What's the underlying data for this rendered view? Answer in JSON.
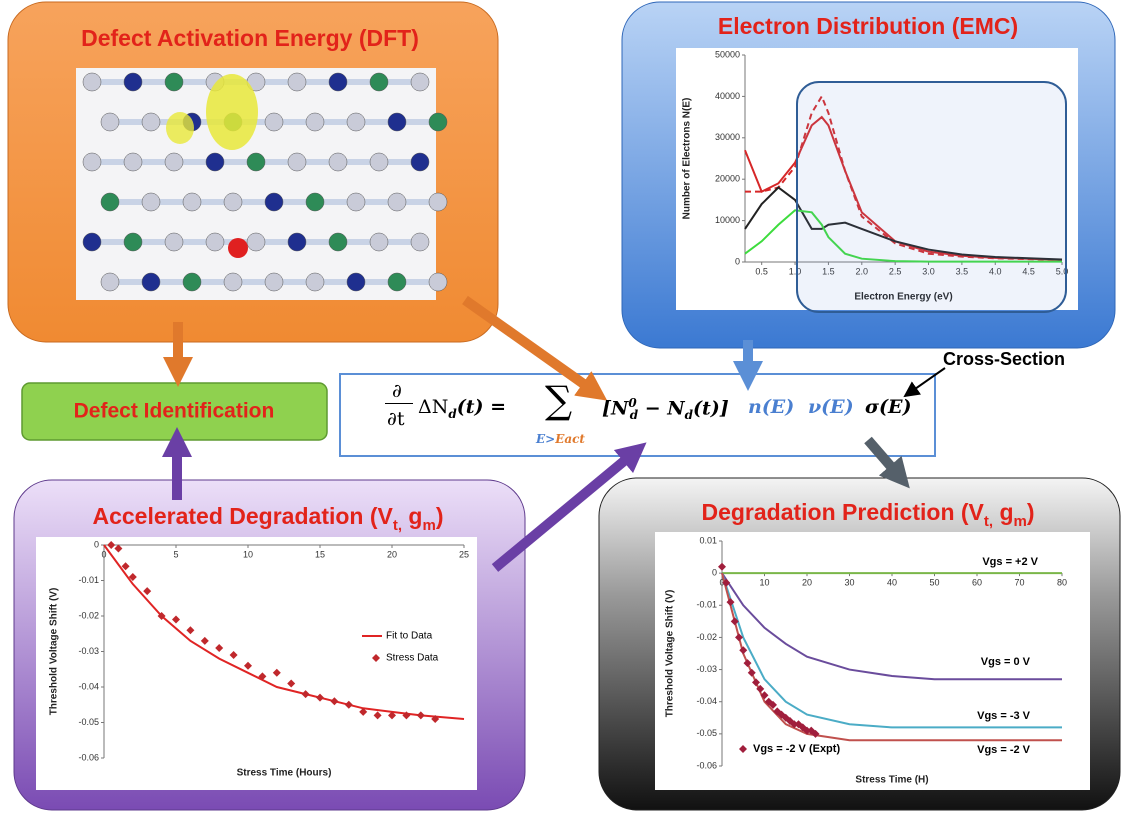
{
  "panels": {
    "dft": {
      "title": "Defect Activation Energy (DFT)"
    },
    "emc": {
      "title": "Electron Distribution (EMC)",
      "chart": {
        "type": "line",
        "ylabel": "Number of Electrons N(E)",
        "xlabel": "Electron Energy (eV)",
        "x": [
          0.25,
          0.5,
          0.75,
          1.0,
          1.25,
          1.4,
          1.5,
          1.75,
          2.0,
          2.5,
          3.0,
          3.5,
          4.0,
          4.5,
          5.0
        ],
        "xlim": [
          0.25,
          5.0
        ],
        "xticks": [
          0.5,
          {
            "value": 1,
            "label": "1.0"
          },
          1.5,
          {
            "value": 2,
            "label": "2.0"
          },
          2.5,
          {
            "value": 3,
            "label": "3.0"
          },
          3.5,
          {
            "value": 4,
            "label": "4.0"
          },
          4.5,
          {
            "value": 5,
            "label": "5.0"
          }
        ],
        "ylim": [
          0,
          50000
        ],
        "yticks": [
          0,
          10000,
          20000,
          30000,
          40000,
          50000
        ],
        "series": [
          {
            "color": "#d62728",
            "values": [
              27000,
              17000,
              19000,
              24000,
              33000,
              35000,
              33000,
              22000,
              12000,
              5000,
              2500,
              1500,
              1000,
              800,
              500
            ]
          },
          {
            "color": "#d62728",
            "dash": true,
            "values": [
              17000,
              17000,
              18000,
              23000,
              36000,
              40000,
              36000,
              22000,
              11000,
              4500,
              2000,
              1300,
              900,
              700,
              500
            ]
          },
          {
            "color": "#222222",
            "values": [
              8000,
              14000,
              18000,
              15000,
              8000,
              8000,
              9000,
              9500,
              8000,
              5000,
              3000,
              1800,
              1200,
              900,
              600
            ]
          },
          {
            "color": "#3ddc3d",
            "values": [
              2000,
              5000,
              9000,
              12500,
              12000,
              9000,
              6000,
              2000,
              800,
              200,
              100,
              100,
              100,
              100,
              100
            ]
          }
        ]
      }
    },
    "identification": {
      "label": "Defect Identification"
    },
    "accelerated": {
      "title": [
        "Accelerated Degradation (V",
        "t,",
        " g",
        "m",
        ")"
      ],
      "chart": {
        "type": "line",
        "ylabel": "Threshold Voltage Shift (V)",
        "xlabel": "Stress Time (Hours)",
        "xlim": [
          0,
          25
        ],
        "xticks": [
          0,
          5,
          10,
          15,
          20,
          25
        ],
        "ylim": [
          -0.06,
          0
        ],
        "yticks": [
          0,
          -0.01,
          -0.02,
          -0.03,
          -0.04,
          -0.05,
          -0.06
        ],
        "legend": "right",
        "series": [
          {
            "name": "Fit to Data",
            "color": "#e02424",
            "x": [
              0,
              2,
              4,
              6,
              8,
              10,
              12,
              14,
              16,
              18,
              20,
              22,
              25
            ],
            "values": [
              0,
              -0.011,
              -0.02,
              -0.027,
              -0.032,
              -0.036,
              -0.04,
              -0.042,
              -0.044,
              -0.046,
              -0.047,
              -0.048,
              -0.049
            ]
          },
          {
            "name": "Stress Data",
            "color": "#c0282c",
            "marker": "diamond",
            "x": [
              0.5,
              1,
              1.5,
              2,
              3,
              4,
              5,
              6,
              7,
              8,
              9,
              10,
              11,
              12,
              13,
              14,
              15,
              16,
              17,
              18,
              19,
              20,
              21,
              22,
              23
            ],
            "values": [
              0,
              -0.001,
              -0.006,
              -0.009,
              -0.013,
              -0.02,
              -0.021,
              -0.024,
              -0.027,
              -0.029,
              -0.031,
              -0.034,
              -0.037,
              -0.036,
              -0.039,
              -0.042,
              -0.043,
              -0.044,
              -0.045,
              -0.047,
              -0.048,
              -0.048,
              -0.048,
              -0.048,
              -0.049
            ]
          }
        ]
      }
    },
    "prediction": {
      "title": [
        "Degradation Prediction (V",
        "t,",
        " g",
        "m",
        ")"
      ],
      "chart": {
        "type": "line",
        "ylabel": "Threshold Voltage Shift (V)",
        "xlabel": "Stress Time (H)",
        "x": [
          0,
          5,
          10,
          15,
          20,
          30,
          40,
          50,
          60,
          70,
          80
        ],
        "xlim": [
          0,
          80
        ],
        "xticks": [
          0,
          10,
          20,
          30,
          40,
          50,
          60,
          70,
          80
        ],
        "ylim": [
          -0.06,
          0.01
        ],
        "yticks": [
          0.01,
          0,
          -0.01,
          -0.02,
          -0.03,
          -0.04,
          -0.05,
          -0.06
        ],
        "series": [
          {
            "name": "Vgs = +2 V",
            "color": "#7ab648",
            "values": [
              0,
              0,
              0,
              0,
              0,
              0,
              0,
              0,
              0,
              0,
              0
            ]
          },
          {
            "name": "Vgs = 0 V",
            "color": "#6a4c9c",
            "values": [
              0,
              -0.01,
              -0.017,
              -0.022,
              -0.026,
              -0.03,
              -0.032,
              -0.033,
              -0.033,
              -0.033,
              -0.033
            ]
          },
          {
            "name": "Vgs = -3 V",
            "color": "#4bacc6",
            "values": [
              0,
              -0.02,
              -0.033,
              -0.04,
              -0.044,
              -0.047,
              -0.048,
              -0.048,
              -0.048,
              -0.048,
              -0.048
            ]
          },
          {
            "name": "Vgs = -2 V",
            "color": "#c0504d",
            "values": [
              0,
              -0.025,
              -0.04,
              -0.047,
              -0.05,
              -0.052,
              -0.052,
              -0.052,
              -0.052,
              -0.052,
              -0.052
            ]
          },
          {
            "name": "Vgs = -2 V (Expt)",
            "color": "#a01e3c",
            "marker": "diamond",
            "x": [
              0,
              1,
              2,
              3,
              4,
              5,
              6,
              7,
              8,
              9,
              10,
              11,
              12,
              13,
              14,
              15,
              16,
              17,
              18,
              19,
              20,
              21,
              22
            ],
            "values": [
              0.002,
              -0.003,
              -0.009,
              -0.015,
              -0.02,
              -0.024,
              -0.028,
              -0.031,
              -0.034,
              -0.036,
              -0.038,
              -0.04,
              -0.041,
              -0.043,
              -0.044,
              -0.045,
              -0.046,
              -0.047,
              -0.047,
              -0.048,
              -0.049,
              -0.049,
              -0.05
            ]
          }
        ]
      }
    }
  },
  "equation": {
    "d_num": "∂",
    "d_den": "∂t",
    "lhs": "ΔN",
    "lhs_sub": "d",
    "lhs_end": "(t) =",
    "sum": "∑",
    "limit_a": "E>",
    "limit_b": "Eact",
    "bracket_open": "[N",
    "n0_sub": "d",
    "n0_sup": "0",
    "minus": "− N",
    "n_sub": "d",
    "bracket_close": "(t)]",
    "n": "n(E)",
    "v": "ν(E)",
    "sigma": "σ(E)"
  },
  "annotation": "Cross-Section"
}
